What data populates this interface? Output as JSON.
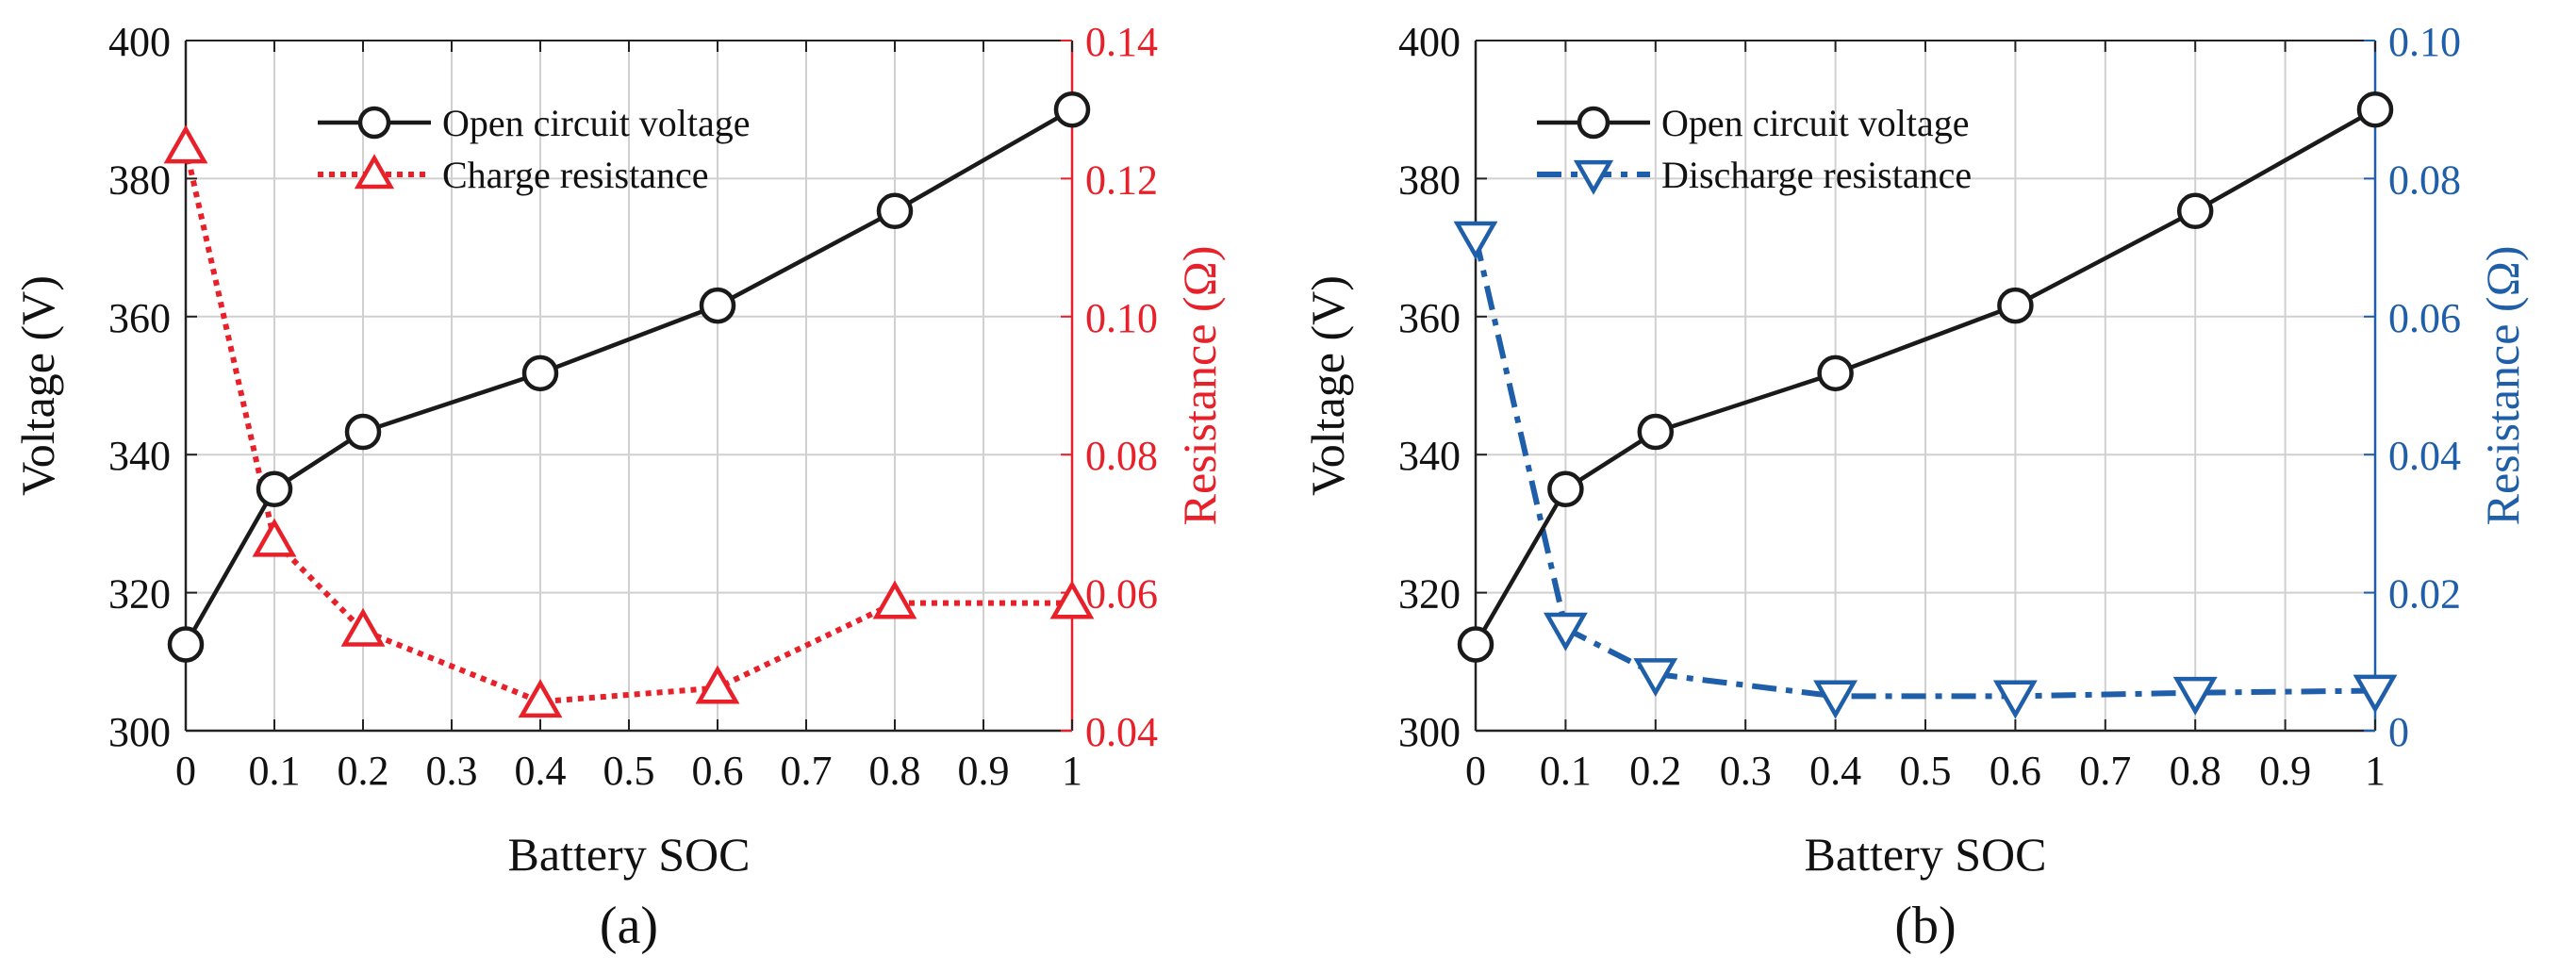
{
  "colors": {
    "voltage": "#1a1a1a",
    "charge": "#e8202a",
    "discharge": "#1f5ea8",
    "grid": "#d0d0d0",
    "axis": "#222222"
  },
  "chart_data": [
    {
      "type": "line",
      "panel_label": "(a)",
      "xlabel": "Battery SOC",
      "ylabel_left": "Voltage (V)",
      "ylabel_right": "Resistance (Ω)",
      "xlim": [
        0,
        1
      ],
      "ylim_left": [
        300,
        400
      ],
      "ylim_right": [
        0.04,
        0.14
      ],
      "x_ticks": [
        0,
        0.1,
        0.2,
        0.3,
        0.4,
        0.5,
        0.6,
        0.7,
        0.8,
        0.9,
        1
      ],
      "x_tick_labels": [
        "0",
        "0.1",
        "0.2",
        "0.3",
        "0.4",
        "0.5",
        "0.6",
        "0.7",
        "0.8",
        "0.9",
        "1"
      ],
      "y_left_ticks": [
        300,
        320,
        340,
        360,
        380,
        400
      ],
      "y_left_tick_labels": [
        "300",
        "320",
        "340",
        "360",
        "380",
        "400"
      ],
      "y_right_ticks": [
        0.04,
        0.06,
        0.08,
        0.1,
        0.12,
        0.14
      ],
      "y_right_tick_labels": [
        "0.04",
        "0.06",
        "0.08",
        "0.10",
        "0.12",
        "0.14"
      ],
      "right_color": "#e8202a",
      "grid": true,
      "legend_position": "top-center",
      "series": [
        {
          "name": "Open circuit voltage",
          "axis": "left",
          "marker": "circle",
          "line": "solid",
          "color": "#1a1a1a",
          "x": [
            0,
            0.1,
            0.2,
            0.4,
            0.6,
            0.8,
            1
          ],
          "y": [
            312.5,
            335,
            343.3,
            351.8,
            361.6,
            375.3,
            390
          ]
        },
        {
          "name": "Charge resistance",
          "axis": "right",
          "marker": "triangle-up",
          "line": "dotted",
          "color": "#e8202a",
          "x": [
            0,
            0.1,
            0.2,
            0.4,
            0.6,
            0.8,
            1
          ],
          "y": [
            0.1245,
            0.0675,
            0.0545,
            0.0442,
            0.0462,
            0.0585,
            0.0585
          ]
        }
      ]
    },
    {
      "type": "line",
      "panel_label": "(b)",
      "xlabel": "Battery SOC",
      "ylabel_left": "Voltage (V)",
      "ylabel_right": "Resistance (Ω)",
      "xlim": [
        0,
        1
      ],
      "ylim_left": [
        300,
        400
      ],
      "ylim_right": [
        0,
        0.1
      ],
      "x_ticks": [
        0,
        0.1,
        0.2,
        0.3,
        0.4,
        0.5,
        0.6,
        0.7,
        0.8,
        0.9,
        1
      ],
      "x_tick_labels": [
        "0",
        "0.1",
        "0.2",
        "0.3",
        "0.4",
        "0.5",
        "0.6",
        "0.7",
        "0.8",
        "0.9",
        "1"
      ],
      "y_left_ticks": [
        300,
        320,
        340,
        360,
        380,
        400
      ],
      "y_left_tick_labels": [
        "300",
        "320",
        "340",
        "360",
        "380",
        "400"
      ],
      "y_right_ticks": [
        0,
        0.02,
        0.04,
        0.06,
        0.08,
        0.1
      ],
      "y_right_tick_labels": [
        "0",
        "0.02",
        "0.04",
        "0.06",
        "0.08",
        "0.10"
      ],
      "right_color": "#1f5ea8",
      "grid": true,
      "legend_position": "top-center",
      "series": [
        {
          "name": "Open circuit voltage",
          "axis": "left",
          "marker": "circle",
          "line": "solid",
          "color": "#1a1a1a",
          "x": [
            0,
            0.1,
            0.2,
            0.4,
            0.6,
            0.8,
            1
          ],
          "y": [
            312.5,
            335,
            343.3,
            351.8,
            361.6,
            375.3,
            390
          ]
        },
        {
          "name": "Discharge resistance",
          "axis": "right",
          "marker": "triangle-down",
          "line": "dashdot",
          "color": "#1f5ea8",
          "x": [
            0,
            0.1,
            0.2,
            0.4,
            0.6,
            0.8,
            1
          ],
          "y": [
            0.0715,
            0.0148,
            0.0082,
            0.005,
            0.005,
            0.0055,
            0.0058
          ]
        }
      ]
    }
  ]
}
